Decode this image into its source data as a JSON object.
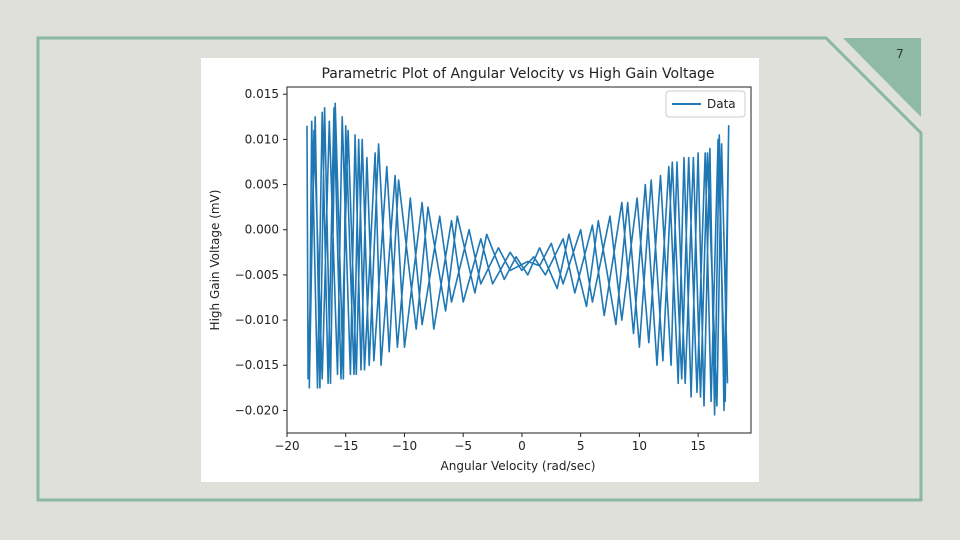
{
  "slide": {
    "page_number": "7",
    "accent_color": "#8ab8a2",
    "accent_fill": "#8fbba6"
  },
  "chart_data": {
    "type": "line",
    "title": "Parametric Plot of Angular Velocity vs High Gain Voltage",
    "xlabel": "Angular Velocity (rad/sec)",
    "ylabel": "High Gain Voltage (mV)",
    "xlim": [
      -20,
      19.5
    ],
    "ylim": [
      -0.0225,
      0.0158
    ],
    "x_ticks": [
      -20,
      -15,
      -10,
      -5,
      0,
      5,
      10,
      15
    ],
    "x_tick_labels": [
      "−20",
      "−15",
      "−10",
      "−5",
      "0",
      "5",
      "10",
      "15"
    ],
    "y_ticks": [
      0.015,
      0.01,
      0.005,
      0.0,
      -0.005,
      -0.01,
      -0.015,
      -0.02
    ],
    "y_tick_labels": [
      "0.015",
      "0.010",
      "0.005",
      "0.000",
      "−0.005",
      "−0.010",
      "−0.015",
      "−0.020"
    ],
    "grid": false,
    "legend": {
      "position": "top-right",
      "entries": [
        "Data"
      ]
    },
    "series": [
      {
        "name": "Data",
        "color": "#1f77b4",
        "points": [
          [
            -18.3,
            0.0115
          ],
          [
            -18.2,
            -0.0165
          ],
          [
            -17.6,
            0.0125
          ],
          [
            -17.2,
            -0.0175
          ],
          [
            -16.8,
            0.0135
          ],
          [
            -16.3,
            -0.017
          ],
          [
            -15.9,
            0.014
          ],
          [
            -15.2,
            -0.0165
          ],
          [
            -15.0,
            0.0115
          ],
          [
            -14.3,
            -0.016
          ],
          [
            -13.9,
            0.01
          ],
          [
            -13.4,
            -0.0155
          ],
          [
            -12.5,
            0.0085
          ],
          [
            -12.0,
            -0.015
          ],
          [
            -10.8,
            0.006
          ],
          [
            -10.0,
            -0.013
          ],
          [
            -8.5,
            0.003
          ],
          [
            -7.5,
            -0.011
          ],
          [
            -6.0,
            0.001
          ],
          [
            -5.0,
            -0.008
          ],
          [
            -3.5,
            -0.001
          ],
          [
            -2.5,
            -0.006
          ],
          [
            -1.0,
            -0.0025
          ],
          [
            0.0,
            -0.0045
          ],
          [
            1.0,
            -0.003
          ],
          [
            2.0,
            -0.005
          ],
          [
            3.5,
            -0.001
          ],
          [
            4.5,
            -0.007
          ],
          [
            6.0,
            0.0005
          ],
          [
            7.0,
            -0.0095
          ],
          [
            8.5,
            0.003
          ],
          [
            9.5,
            -0.0115
          ],
          [
            10.5,
            0.005
          ],
          [
            11.5,
            -0.015
          ],
          [
            12.5,
            0.007
          ],
          [
            13.3,
            -0.017
          ],
          [
            13.8,
            0.008
          ],
          [
            14.4,
            -0.0185
          ],
          [
            15.0,
            0.0085
          ],
          [
            15.5,
            -0.0195
          ],
          [
            16.0,
            0.009
          ],
          [
            16.4,
            -0.0205
          ],
          [
            16.8,
            0.0105
          ],
          [
            17.2,
            -0.02
          ],
          [
            17.6,
            0.0115
          ],
          [
            17.3,
            -0.019
          ],
          [
            16.7,
            0.01
          ],
          [
            16.1,
            -0.019
          ],
          [
            15.6,
            0.0085
          ],
          [
            14.9,
            -0.018
          ],
          [
            14.2,
            0.008
          ],
          [
            13.6,
            -0.0165
          ],
          [
            12.8,
            0.0075
          ],
          [
            12.0,
            -0.0145
          ],
          [
            11.0,
            0.0055
          ],
          [
            10.0,
            -0.013
          ],
          [
            9.0,
            0.003
          ],
          [
            8.0,
            -0.0105
          ],
          [
            6.5,
            0.001
          ],
          [
            5.5,
            -0.0085
          ],
          [
            4.0,
            -0.0005
          ],
          [
            3.0,
            -0.0065
          ],
          [
            1.5,
            -0.002
          ],
          [
            0.5,
            -0.005
          ],
          [
            -0.5,
            -0.003
          ],
          [
            -1.5,
            -0.0055
          ],
          [
            -3.0,
            -0.0005
          ],
          [
            -4.0,
            -0.007
          ],
          [
            -5.5,
            0.0015
          ],
          [
            -6.5,
            -0.009
          ],
          [
            -8.0,
            0.0025
          ],
          [
            -9.0,
            -0.011
          ],
          [
            -10.5,
            0.0055
          ],
          [
            -11.3,
            -0.0135
          ],
          [
            -12.2,
            0.0095
          ],
          [
            -13.0,
            -0.015
          ],
          [
            -13.6,
            0.01
          ],
          [
            -14.1,
            -0.016
          ],
          [
            -14.8,
            0.011
          ],
          [
            -15.4,
            -0.0165
          ],
          [
            -16.0,
            0.0135
          ],
          [
            -16.5,
            -0.017
          ],
          [
            -17.0,
            0.013
          ],
          [
            -17.4,
            -0.0175
          ],
          [
            -17.9,
            0.012
          ],
          [
            -18.1,
            -0.0175
          ],
          [
            -17.7,
            0.011
          ],
          [
            -17.0,
            -0.0165
          ],
          [
            -16.4,
            0.012
          ],
          [
            -15.7,
            -0.016
          ],
          [
            -15.3,
            0.0125
          ],
          [
            -14.6,
            -0.016
          ],
          [
            -14.2,
            0.0105
          ],
          [
            -13.7,
            -0.0155
          ],
          [
            -13.2,
            0.008
          ],
          [
            -12.6,
            -0.0145
          ],
          [
            -11.5,
            0.007
          ],
          [
            -10.6,
            -0.013
          ],
          [
            -9.5,
            0.0035
          ],
          [
            -8.5,
            -0.0105
          ],
          [
            -7.0,
            0.0015
          ],
          [
            -6.0,
            -0.008
          ],
          [
            -4.5,
            0.0
          ],
          [
            -3.5,
            -0.006
          ],
          [
            -2.0,
            -0.002
          ],
          [
            -1.0,
            -0.0045
          ],
          [
            0.5,
            -0.0035
          ],
          [
            1.5,
            -0.004
          ],
          [
            2.5,
            -0.0015
          ],
          [
            3.5,
            -0.006
          ],
          [
            5.0,
            0.0
          ],
          [
            6.0,
            -0.008
          ],
          [
            7.5,
            0.0015
          ],
          [
            8.5,
            -0.01
          ],
          [
            9.8,
            0.0035
          ],
          [
            10.8,
            -0.0125
          ],
          [
            11.8,
            0.006
          ],
          [
            12.7,
            -0.015
          ],
          [
            13.2,
            0.0075
          ],
          [
            13.9,
            -0.017
          ],
          [
            14.6,
            0.008
          ],
          [
            15.2,
            -0.0185
          ],
          [
            15.8,
            0.0085
          ],
          [
            16.6,
            -0.0195
          ],
          [
            17.0,
            0.0095
          ],
          [
            17.5,
            -0.017
          ]
        ]
      }
    ]
  }
}
